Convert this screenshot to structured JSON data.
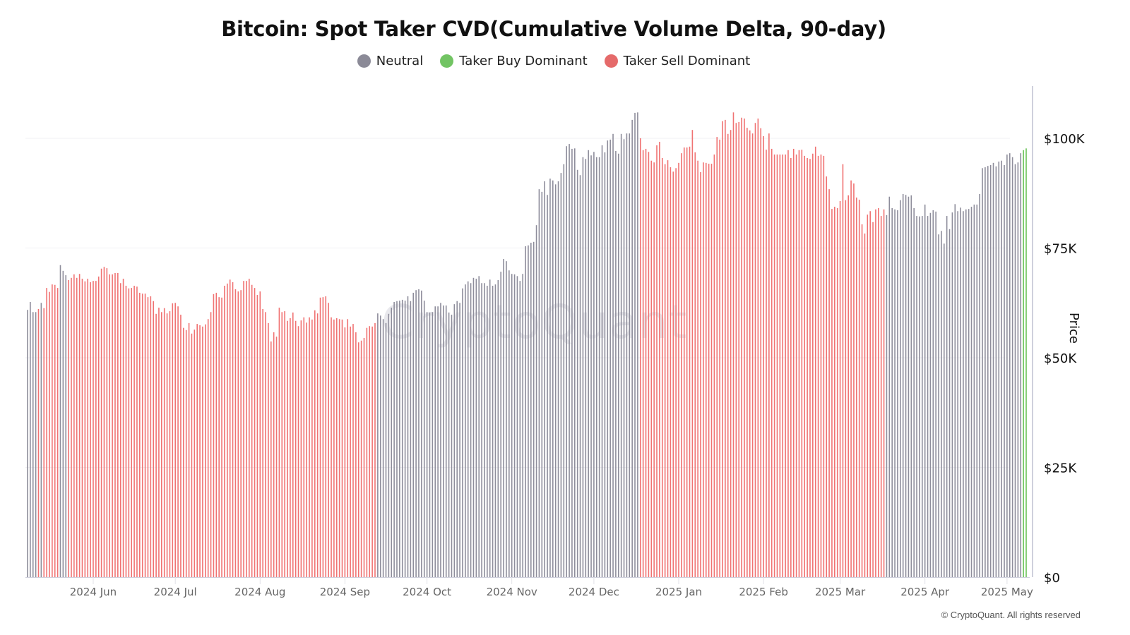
{
  "chart_data": {
    "type": "bar",
    "title": "Bitcoin: Spot Taker CVD(Cumulative Volume Delta, 90-day)",
    "legend": [
      {
        "name": "Neutral",
        "color": "#8b8a97"
      },
      {
        "name": "Taker Buy Dominant",
        "color": "#72c463"
      },
      {
        "name": "Taker Sell Dominant",
        "color": "#e56a6a"
      }
    ],
    "legend_position": "top-center",
    "bar_colors": {
      "Neutral": "#8e8d9b",
      "Taker Buy Dominant": "#6cc35a",
      "Taker Sell Dominant": "#f07272"
    },
    "ylabel": "Price",
    "y_unit": "USD thousands",
    "ylim": [
      0,
      110
    ],
    "y_ticks": [
      {
        "value": 0,
        "label": "$0"
      },
      {
        "value": 25,
        "label": "$25K"
      },
      {
        "value": 50,
        "label": "$50K"
      },
      {
        "value": 75,
        "label": "$75K"
      },
      {
        "value": 100,
        "label": "$100K"
      }
    ],
    "y_axis_position": "right",
    "grid": true,
    "x_first": "2024-05-08",
    "x_last": "2025-05-08",
    "x_ticks": [
      {
        "date": "2024-06-01",
        "label": "2024 Jun"
      },
      {
        "date": "2024-07-01",
        "label": "2024 Jul"
      },
      {
        "date": "2024-08-01",
        "label": "2024 Aug"
      },
      {
        "date": "2024-09-01",
        "label": "2024 Sep"
      },
      {
        "date": "2024-10-01",
        "label": "2024 Oct"
      },
      {
        "date": "2024-11-01",
        "label": "2024 Nov"
      },
      {
        "date": "2024-12-01",
        "label": "2024 Dec"
      },
      {
        "date": "2025-01-01",
        "label": "2025 Jan"
      },
      {
        "date": "2025-02-01",
        "label": "2025 Feb"
      },
      {
        "date": "2025-03-01",
        "label": "2025 Mar"
      },
      {
        "date": "2025-04-01",
        "label": "2025 Apr"
      },
      {
        "date": "2025-05-01",
        "label": "2025 May"
      }
    ],
    "color_segments": [
      {
        "from": "2024-05-08",
        "to": "2024-05-11",
        "class": "Neutral"
      },
      {
        "from": "2024-05-12",
        "to": "2024-05-12",
        "class": "Taker Sell Dominant"
      },
      {
        "from": "2024-05-13",
        "to": "2024-05-13",
        "class": "Neutral"
      },
      {
        "from": "2024-05-14",
        "to": "2024-05-19",
        "class": "Taker Sell Dominant"
      },
      {
        "from": "2024-05-20",
        "to": "2024-05-22",
        "class": "Neutral"
      },
      {
        "from": "2024-05-23",
        "to": "2024-09-12",
        "class": "Taker Sell Dominant"
      },
      {
        "from": "2024-09-13",
        "to": "2024-12-17",
        "class": "Neutral"
      },
      {
        "from": "2024-12-18",
        "to": "2025-03-17",
        "class": "Taker Sell Dominant"
      },
      {
        "from": "2025-03-18",
        "to": "2025-05-06",
        "class": "Neutral"
      },
      {
        "from": "2025-05-07",
        "to": "2025-05-08",
        "class": "Taker Buy Dominant"
      }
    ],
    "values": [
      60.9,
      62.7,
      60.4,
      60.4,
      61.1,
      62.5,
      61.3,
      65.9,
      65.0,
      66.7,
      66.6,
      65.9,
      71.1,
      69.8,
      68.8,
      67.7,
      68.2,
      69.0,
      68.2,
      69.1,
      68.0,
      67.4,
      68.0,
      67.2,
      67.5,
      67.5,
      68.5,
      70.3,
      70.7,
      70.4,
      69.0,
      69.0,
      69.3,
      69.3,
      67.0,
      68.0,
      66.4,
      65.8,
      65.9,
      66.4,
      66.2,
      64.8,
      64.6,
      64.6,
      63.8,
      64.0,
      62.9,
      60.0,
      61.4,
      60.4,
      61.3,
      60.1,
      60.6,
      62.4,
      62.5,
      61.7,
      59.8,
      56.8,
      56.3,
      57.9,
      55.5,
      56.4,
      57.7,
      57.4,
      57.1,
      57.6,
      58.8,
      60.4,
      64.5,
      64.8,
      63.8,
      63.7,
      66.4,
      66.9,
      67.8,
      67.2,
      65.6,
      65.1,
      65.4,
      67.5,
      67.5,
      68.0,
      66.6,
      65.9,
      64.3,
      65.1,
      61.1,
      60.4,
      57.9,
      53.7,
      55.8,
      54.8,
      61.4,
      60.4,
      60.6,
      58.4,
      59.0,
      60.3,
      58.4,
      57.2,
      58.5,
      59.2,
      58.0,
      59.2,
      58.7,
      60.8,
      60.1,
      63.7,
      63.8,
      64.0,
      62.5,
      59.2,
      58.7,
      59.0,
      58.8,
      58.7,
      56.9,
      58.8,
      57.1,
      57.7,
      55.8,
      53.5,
      53.9,
      54.5,
      56.8,
      57.2,
      57.1,
      57.9,
      60.1,
      59.6,
      58.8,
      57.9,
      60.0,
      61.4,
      62.7,
      62.9,
      63.0,
      63.2,
      63.0,
      64.0,
      62.9,
      64.8,
      65.4,
      65.6,
      65.3,
      63.0,
      60.4,
      60.3,
      60.4,
      61.7,
      61.7,
      62.5,
      61.9,
      61.9,
      60.3,
      59.8,
      62.2,
      62.9,
      62.5,
      65.8,
      66.7,
      67.4,
      67.0,
      68.2,
      68.0,
      68.6,
      67.0,
      67.0,
      66.4,
      67.8,
      66.4,
      66.7,
      67.7,
      69.6,
      72.5,
      72.0,
      69.9,
      69.1,
      69.0,
      68.6,
      67.5,
      69.1,
      75.4,
      75.6,
      76.2,
      76.4,
      80.2,
      88.4,
      87.8,
      90.2,
      87.1,
      90.8,
      90.4,
      89.5,
      90.2,
      92.1,
      94.1,
      98.2,
      98.7,
      97.6,
      97.7,
      92.8,
      91.6,
      95.7,
      95.3,
      97.3,
      96.1,
      96.9,
      95.7,
      95.7,
      98.4,
      96.8,
      99.5,
      99.7,
      101.0,
      97.1,
      96.5,
      101.0,
      99.8,
      101.1,
      101.1,
      104.2,
      105.8,
      105.9,
      100.0,
      97.3,
      97.6,
      96.9,
      94.9,
      94.5,
      98.4,
      99.2,
      95.5,
      94.1,
      95.0,
      93.4,
      92.4,
      93.2,
      94.4,
      96.6,
      97.9,
      97.9,
      98.1,
      101.9,
      96.8,
      94.9,
      92.3,
      94.5,
      94.4,
      94.2,
      94.2,
      96.3,
      100.3,
      99.7,
      103.9,
      104.2,
      101.0,
      101.9,
      105.9,
      103.5,
      103.7,
      104.7,
      104.5,
      102.4,
      101.8,
      101.1,
      103.5,
      104.5,
      102.3,
      100.5,
      97.4,
      101.1,
      97.6,
      96.3,
      96.3,
      96.3,
      96.3,
      96.3,
      97.3,
      95.5,
      97.6,
      96.3,
      97.3,
      97.4,
      96.0,
      95.5,
      95.3,
      96.5,
      98.1,
      96.0,
      96.3,
      96.0,
      91.3,
      88.4,
      83.9,
      84.4,
      84.1,
      85.7,
      94.1,
      85.9,
      87.0,
      90.4,
      89.7,
      86.5,
      86.0,
      80.4,
      78.3,
      82.6,
      83.4,
      80.9,
      83.8,
      84.1,
      82.3,
      83.8,
      82.5,
      86.7,
      84.1,
      83.8,
      83.6,
      85.9,
      87.3,
      87.1,
      86.7,
      87.0,
      84.1,
      82.3,
      82.2,
      82.3,
      84.9,
      82.3,
      83.0,
      83.6,
      83.3,
      78.1,
      78.9,
      76.0,
      82.3,
      79.3,
      83.1,
      85.0,
      83.4,
      84.2,
      83.4,
      83.8,
      83.9,
      84.4,
      84.9,
      84.9,
      87.3,
      93.2,
      93.4,
      93.7,
      93.9,
      94.4,
      93.6,
      94.7,
      94.9,
      93.9,
      96.3,
      96.6,
      95.7,
      94.1,
      94.5,
      96.6,
      97.3,
      97.7
    ]
  },
  "watermark": "CryptoQuant",
  "footer": {
    "copyright": "© CryptoQuant. All rights reserved"
  }
}
